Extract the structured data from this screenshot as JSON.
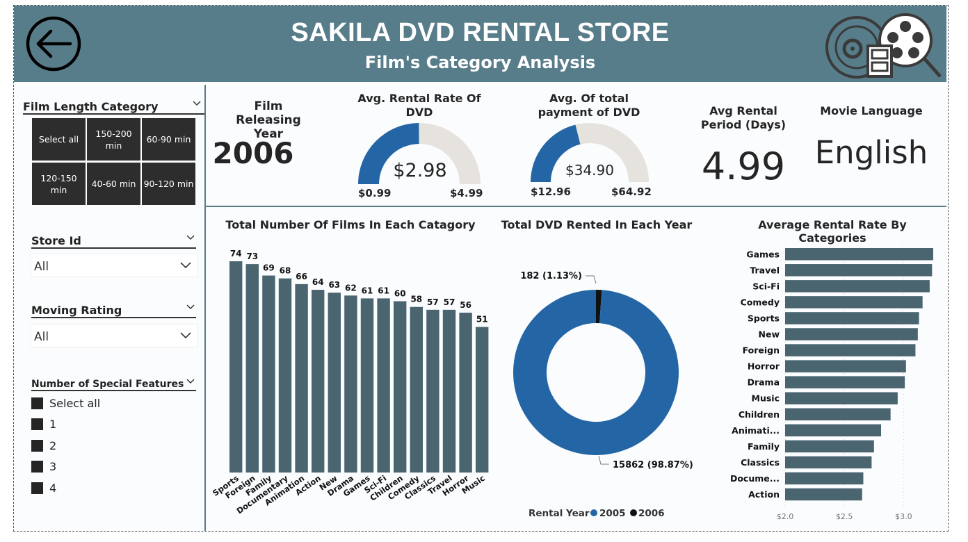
{
  "header": {
    "title": "SAKILA DVD RENTAL STORE",
    "subtitle": "Film's Category Analysis",
    "back_icon": "back-arrow-circle-icon",
    "film_icon": "film-reel-icon"
  },
  "filters": {
    "film_length": {
      "title": "Film Length Category",
      "tiles": [
        "Select all",
        "150-200 min",
        "60-90 min",
        "120-150 min",
        "40-60 min",
        "90-120 min"
      ]
    },
    "store_id": {
      "title": "Store Id",
      "value": "All"
    },
    "moving_rating": {
      "title": "Moving Rating",
      "value": "All"
    },
    "special_features": {
      "title": "Number of Special Features",
      "options": [
        "Select all",
        "1",
        "2",
        "3",
        "4"
      ]
    }
  },
  "kpis": {
    "release_year": {
      "label": "Film Releasing Year",
      "value": "2006"
    },
    "avg_rental_rate": {
      "label": "Avg. Rental Rate Of DVD",
      "value": "$2.98",
      "min": "$0.99",
      "max": "$4.99",
      "fraction": 0.4975
    },
    "avg_payment": {
      "label": "Avg. Of total payment of DVD",
      "value": "$34.90",
      "min": "$12.96",
      "max": "$64.92",
      "fraction": 0.4222
    },
    "avg_rental_period": {
      "label": "Avg Rental Period (Days)",
      "value": "4.99"
    },
    "movie_language": {
      "label": "Movie Language",
      "value": "English"
    }
  },
  "colors": {
    "header": "#587d8a",
    "bar": "#4a6570",
    "gauge_fill": "#2466a5",
    "gauge_track": "#e6e2dd",
    "donut_2005": "#2466a5",
    "donut_2006": "#111111",
    "tile": "#2d2d2d"
  },
  "chart_data": [
    {
      "type": "bar",
      "title": "Total Number Of Films In Each Catagory",
      "categories": [
        "Sports",
        "Foreign",
        "Family",
        "Documentary",
        "Animation",
        "Action",
        "New",
        "Drama",
        "Games",
        "Sci-Fi",
        "Children",
        "Comedy",
        "Classics",
        "Travel",
        "Horror",
        "Music"
      ],
      "values": [
        74,
        73,
        69,
        68,
        66,
        64,
        63,
        62,
        61,
        61,
        60,
        58,
        57,
        57,
        56,
        51
      ],
      "ylim": [
        0,
        74
      ]
    },
    {
      "type": "pie",
      "title": "Total DVD Rented In Each Year",
      "legend_title": "Rental Year",
      "slices": [
        {
          "label": "2005",
          "value": 15862,
          "display": "15862 (98.87%)"
        },
        {
          "label": "2006",
          "value": 182,
          "display": "182 (1.13%)"
        }
      ],
      "legend": "bottom"
    },
    {
      "type": "bar",
      "orientation": "horizontal",
      "title": "Average Rental Rate By Categories",
      "categories": [
        "Games",
        "Travel",
        "Sci-Fi",
        "Comedy",
        "Sports",
        "New",
        "Foreign",
        "Horror",
        "Drama",
        "Music",
        "Children",
        "Animati...",
        "Family",
        "Classics",
        "Docume...",
        "Action"
      ],
      "values": [
        3.25,
        3.24,
        3.22,
        3.16,
        3.13,
        3.12,
        3.1,
        3.02,
        3.01,
        2.95,
        2.89,
        2.81,
        2.75,
        2.73,
        2.66,
        2.65
      ],
      "xlim": [
        2.0,
        3.25
      ],
      "xticks": [
        "$2.0",
        "$2.5",
        "$3.0"
      ],
      "xtick_values": [
        2.0,
        2.5,
        3.0
      ]
    }
  ]
}
